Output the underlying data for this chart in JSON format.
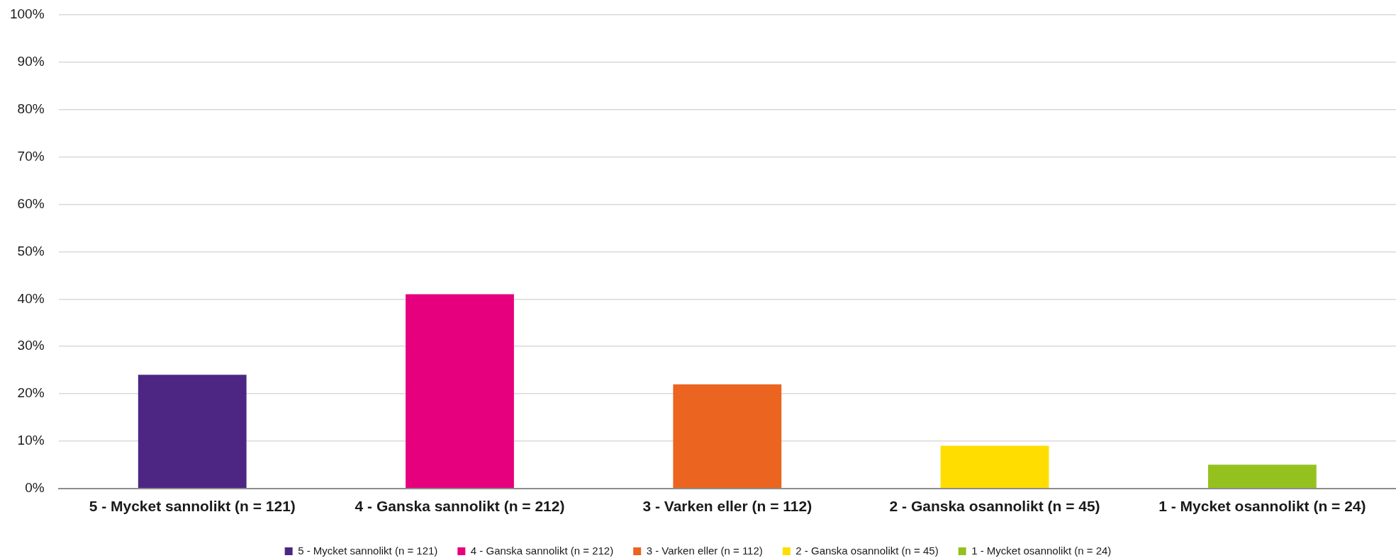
{
  "chart_data": {
    "type": "bar",
    "categories": [
      "5 - Mycket sannolikt (n = 121)",
      "4 - Ganska sannolikt (n = 212)",
      "3 - Varken eller (n = 112)",
      "2 - Ganska osannolikt (n = 45)",
      "1 - Mycket osannolikt (n = 24)"
    ],
    "series": [
      {
        "name": "5 - Mycket sannolikt (n = 121)",
        "color": "#4d2683",
        "values": [
          24,
          null,
          null,
          null,
          null
        ]
      },
      {
        "name": "4 - Ganska sannolikt (n = 212)",
        "color": "#e6007e",
        "values": [
          null,
          41,
          null,
          null,
          null
        ]
      },
      {
        "name": "3 - Varken eller (n = 112)",
        "color": "#eb6420",
        "values": [
          null,
          null,
          22,
          null,
          null
        ]
      },
      {
        "name": "2 - Ganska osannolikt (n = 45)",
        "color": "#ffdd00",
        "values": [
          null,
          null,
          null,
          9,
          null
        ]
      },
      {
        "name": "1 - Mycket osannolikt (n = 24)",
        "color": "#95c11f",
        "values": [
          null,
          null,
          null,
          null,
          5
        ]
      }
    ],
    "ylim": [
      0,
      100
    ],
    "yticks": [
      {
        "value": 0,
        "label": "0%"
      },
      {
        "value": 10,
        "label": "10%"
      },
      {
        "value": 20,
        "label": "20%"
      },
      {
        "value": 30,
        "label": "30%"
      },
      {
        "value": 40,
        "label": "40%"
      },
      {
        "value": 50,
        "label": "50%"
      },
      {
        "value": 60,
        "label": "60%"
      },
      {
        "value": 70,
        "label": "70%"
      },
      {
        "value": 80,
        "label": "80%"
      },
      {
        "value": 90,
        "label": "90%"
      },
      {
        "value": 100,
        "label": "100%"
      }
    ],
    "grid": "y",
    "legend": "bottom"
  }
}
